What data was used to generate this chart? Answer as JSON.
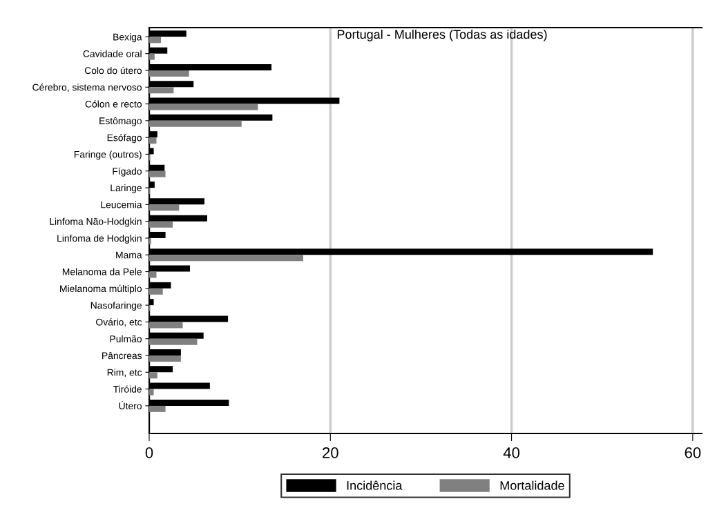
{
  "chart_data": {
    "type": "bar",
    "orientation": "horizontal",
    "title": "Portugal - Mulheres (Todas as idades)",
    "categories": [
      "Bexiga",
      "Cavidade oral",
      "Colo do útero",
      "Cérebro, sistema nervoso",
      "Cólon e recto",
      "Estômago",
      "Esófago",
      "Faringe (outros)",
      "Fígado",
      "Laringe",
      "Leucemia",
      "Linfoma Não-Hodgkin",
      "Linfoma de Hodgkin",
      "Mama",
      "Melanoma da Pele",
      "Mielanoma múltiplo",
      "Nasofaringe",
      "Ovário, etc",
      "Pulmão",
      "Pâncreas",
      "Rim, etc",
      "Tiróide",
      "Útero"
    ],
    "series": [
      {
        "name": "Incidência",
        "color": "#000000",
        "values": [
          4.1,
          2.0,
          13.5,
          4.9,
          21.0,
          13.6,
          0.9,
          0.5,
          1.7,
          0.6,
          6.1,
          6.4,
          1.8,
          55.6,
          4.5,
          2.4,
          0.5,
          8.7,
          6.0,
          3.5,
          2.6,
          6.7,
          8.8
        ]
      },
      {
        "name": "Mortalidade",
        "color": "#808080",
        "values": [
          1.3,
          0.6,
          4.4,
          2.7,
          12.0,
          10.2,
          0.8,
          0.1,
          1.8,
          0.1,
          3.3,
          2.6,
          0.2,
          17.0,
          0.8,
          1.5,
          0.1,
          3.7,
          5.3,
          3.5,
          0.9,
          0.5,
          1.8
        ]
      }
    ],
    "xlim": [
      0,
      61
    ],
    "xticks": [
      0,
      20,
      40,
      60
    ],
    "grid": "x",
    "legend": "bottom"
  }
}
